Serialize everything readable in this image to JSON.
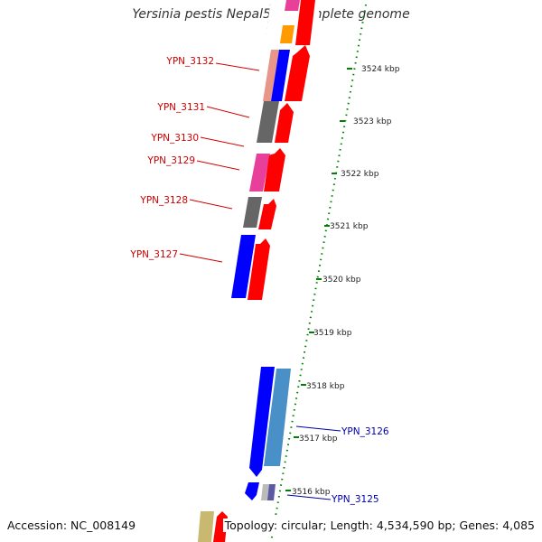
{
  "title": "Yersinia pestis Nepal516, complete genome",
  "footer": {
    "accession": "Accession: NC_008149",
    "topology": "Topology: circular; Length: 4,534,590 bp; Genes: 4,085"
  },
  "colors": {
    "left_label": "#d00000",
    "right_label": "#0000aa",
    "tick_dots": "#008000",
    "backbone": "#888888",
    "red": "#ff0000",
    "blue": "#0000ff",
    "steelblue": "#4a90c8",
    "gray": "#666666",
    "pink": "#e8409a",
    "salmon": "#e8958a",
    "orange": "#ff9a00",
    "khaki": "#c8b870",
    "slate": "#5a5aa0",
    "light_gray": "#bbbbbb"
  },
  "ticks": [
    "3524 kbp",
    "3523 kbp",
    "3522 kbp",
    "3521 kbp",
    "3520 kbp",
    "3519 kbp",
    "3518 kbp",
    "3517 kbp",
    "3516 kbp"
  ],
  "gene_labels_left": [
    "YPN_3132",
    "YPN_3131",
    "YPN_3130",
    "YPN_3129",
    "YPN_3128",
    "YPN_3127"
  ],
  "gene_labels_right": [
    "YPN_3126",
    "YPN_3125"
  ]
}
